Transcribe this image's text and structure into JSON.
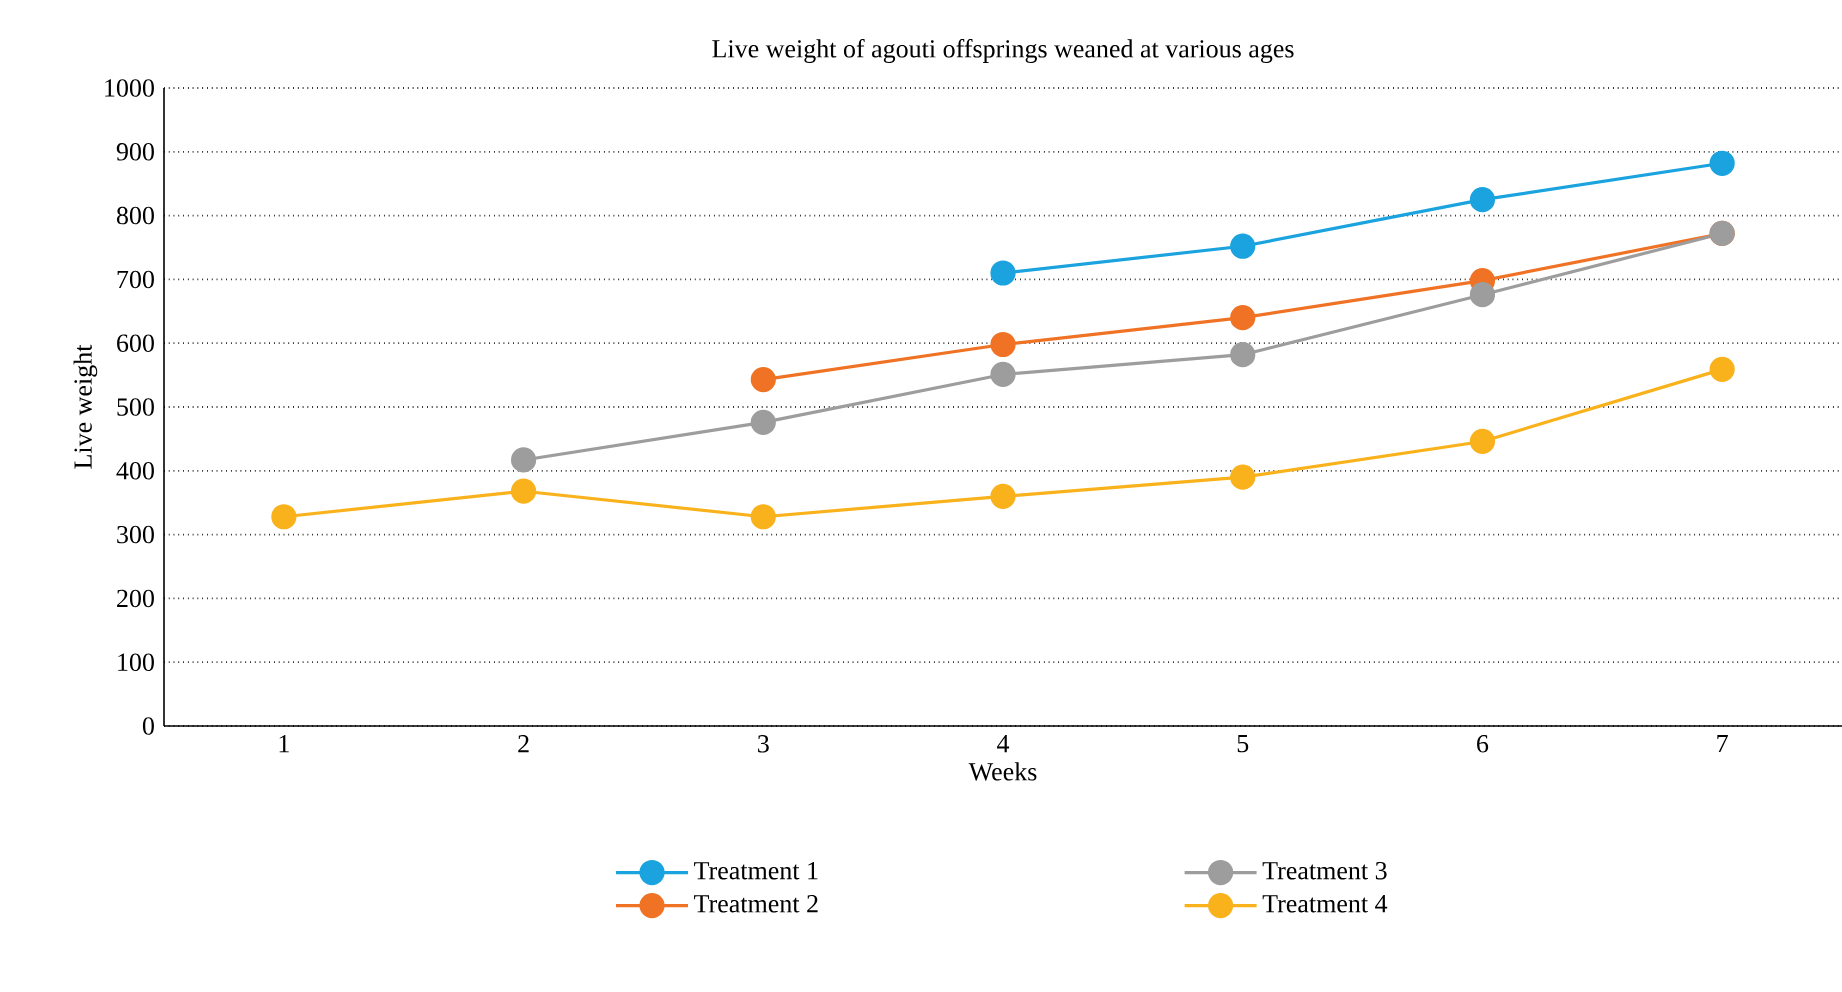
{
  "chart_data": {
    "type": "line",
    "title": "Live weight of agouti offsprings weaned at various ages",
    "xlabel": "Weeks",
    "ylabel": "Live weight",
    "categories": [
      "1",
      "2",
      "3",
      "4",
      "5",
      "6",
      "7"
    ],
    "series": [
      {
        "name": "Treatment 1",
        "color": "#1aa3de",
        "values": [
          null,
          null,
          null,
          710,
          752,
          825,
          882
        ]
      },
      {
        "name": "Treatment 2",
        "color": "#f07224",
        "values": [
          null,
          null,
          543,
          598,
          640,
          698,
          772
        ]
      },
      {
        "name": "Treatment 3",
        "color": "#9d9d9d",
        "values": [
          null,
          417,
          476,
          551,
          582,
          676,
          772
        ]
      },
      {
        "name": "Treatment 4",
        "color": "#f9b21b",
        "values": [
          328,
          368,
          328,
          360,
          390,
          446,
          559
        ]
      }
    ],
    "ylim": [
      0,
      1000
    ],
    "yticks": [
      0,
      100,
      200,
      300,
      400,
      500,
      600,
      700,
      800,
      900,
      1000
    ],
    "grid": "y",
    "legend": "bottom",
    "marker": "circle",
    "line_style": "solid"
  }
}
